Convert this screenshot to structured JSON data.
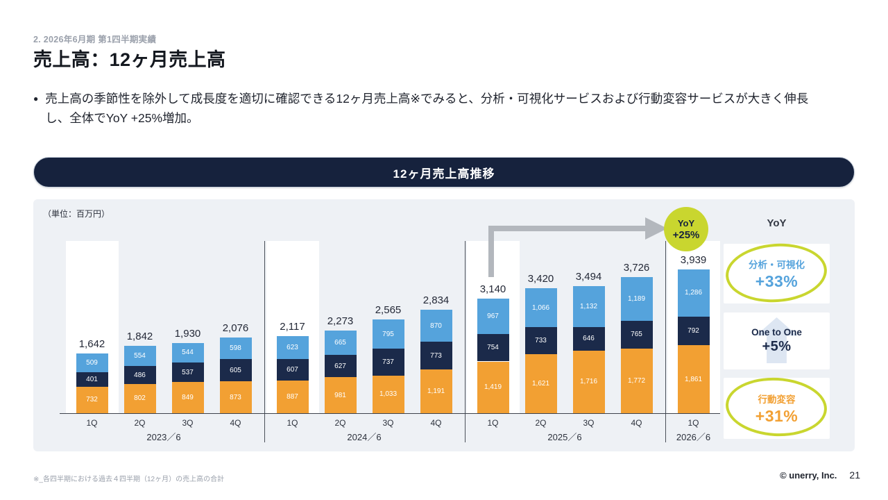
{
  "header": {
    "section": "2. 2026年6月期 第1四半期実績",
    "title": "売上高：12ヶ月売上高",
    "bullet": "売上高の季節性を除外して成長度を適切に確認できる12ヶ月売上高※でみると、分析・可視化サービスおよび行動変容サービスが大きく伸長し、全体でYoY +25%増加。"
  },
  "banner": {
    "title": "12ヶ月売上高推移"
  },
  "chart": {
    "unit_label": "（単位：百万円）",
    "yoy_badge": {
      "line1": "YoY",
      "line2": "+25%"
    }
  },
  "chart_data": {
    "type": "bar",
    "stacked": true,
    "title": "12ヶ月売上高推移",
    "unit": "百万円",
    "categories": [
      "1Q",
      "2Q",
      "3Q",
      "4Q",
      "1Q",
      "2Q",
      "3Q",
      "4Q",
      "1Q",
      "2Q",
      "3Q",
      "4Q",
      "1Q"
    ],
    "groups": [
      {
        "label": "2023／6",
        "quarters": 4
      },
      {
        "label": "2024／6",
        "quarters": 4
      },
      {
        "label": "2025／6",
        "quarters": 4
      },
      {
        "label": "2026／6",
        "quarters": 1
      }
    ],
    "series": [
      {
        "name": "行動変容",
        "color": "#F2A033",
        "values": [
          732,
          802,
          849,
          873,
          887,
          981,
          1033,
          1191,
          1419,
          1621,
          1716,
          1772,
          1861
        ]
      },
      {
        "name": "One to One",
        "color": "#1B2A4A",
        "values": [
          401,
          486,
          537,
          605,
          607,
          627,
          737,
          773,
          754,
          733,
          646,
          765,
          792
        ]
      },
      {
        "name": "分析・可視化",
        "color": "#55A3DC",
        "values": [
          509,
          554,
          544,
          598,
          623,
          665,
          795,
          870,
          967,
          1066,
          1132,
          1189,
          1286
        ]
      }
    ],
    "totals": [
      1642,
      1842,
      1930,
      2076,
      2117,
      2273,
      2565,
      2834,
      3140,
      3420,
      3494,
      3726,
      3939
    ],
    "highlighted_quarters": [
      0,
      4,
      8,
      12
    ],
    "ylim": [
      0,
      4200
    ],
    "grid": false,
    "legend_position": "none",
    "yoy_annotation": {
      "from": "2025／6 1Q",
      "to": "2026／6 1Q",
      "label": "YoY +25%"
    }
  },
  "side_panel": {
    "title": "YoY",
    "items": [
      {
        "label": "分析・可視化",
        "value": "+33%",
        "color": "#55A3DC",
        "circled": true
      },
      {
        "label": "One to One",
        "value": "+5%",
        "color": "#1B2A4A",
        "circled": false
      },
      {
        "label": "行動変容",
        "value": "+31%",
        "color": "#F2A033",
        "circled": true
      }
    ]
  },
  "footer": {
    "note": "※_各四半期における過去４四半期（12ヶ月）の売上高の合計",
    "copyright": "© unerry, Inc.",
    "page": "21"
  },
  "colors": {
    "highlight": "#C9D62F",
    "arrow": "#B3B7BD",
    "banner_bg": "#16223D",
    "card_bg": "#EEF1F5"
  }
}
